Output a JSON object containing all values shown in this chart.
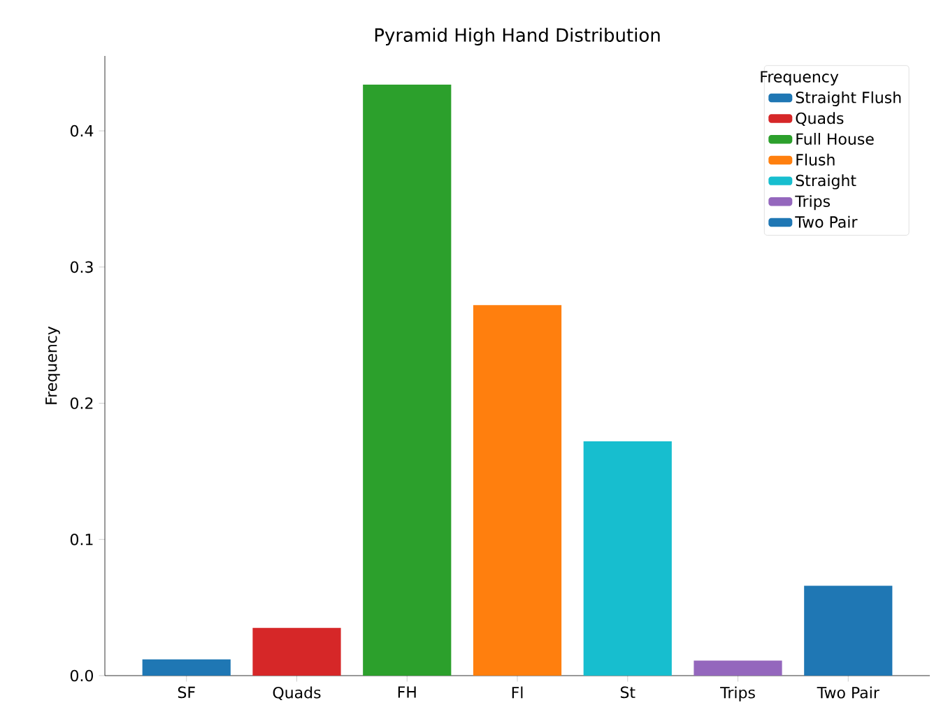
{
  "chart_data": {
    "type": "bar",
    "title": "Pyramid High Hand Distribution",
    "ylabel": "Frequency",
    "legend_title": "Frequency",
    "categories": [
      "SF",
      "Quads",
      "FH",
      "Fl",
      "St",
      "Trips",
      "Two Pair"
    ],
    "series": [
      {
        "name": "Straight Flush",
        "color": "#1f77b4",
        "values": [
          0.012,
          null,
          null,
          null,
          null,
          null,
          null
        ]
      },
      {
        "name": "Quads",
        "color": "#d62728",
        "values": [
          null,
          0.035,
          null,
          null,
          null,
          null,
          null
        ]
      },
      {
        "name": "Full House",
        "color": "#2ca02c",
        "values": [
          null,
          null,
          0.434,
          null,
          null,
          null,
          null
        ]
      },
      {
        "name": "Flush",
        "color": "#ff7f0e",
        "values": [
          null,
          null,
          null,
          0.272,
          null,
          null,
          null
        ]
      },
      {
        "name": "Straight",
        "color": "#17becf",
        "values": [
          null,
          null,
          null,
          null,
          0.172,
          null,
          null
        ]
      },
      {
        "name": "Trips",
        "color": "#9467bd",
        "values": [
          null,
          null,
          null,
          null,
          null,
          0.011,
          null
        ]
      },
      {
        "name": "Two Pair",
        "color": "#1f77b4",
        "values": [
          null,
          null,
          null,
          null,
          null,
          null,
          0.066
        ]
      }
    ],
    "ylim": [
      0,
      0.455
    ],
    "yticks": [
      {
        "value": 0,
        "label": "0.0"
      },
      0.1,
      0.2,
      0.3,
      0.4
    ],
    "legend": "top right",
    "grid": false
  }
}
